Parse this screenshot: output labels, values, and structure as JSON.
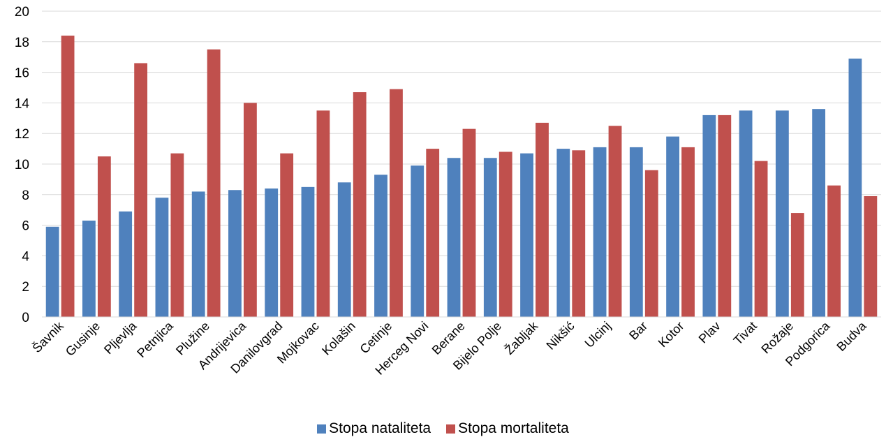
{
  "chart_data": {
    "type": "bar",
    "categories": [
      "Šavnik",
      "Gusinje",
      "Pljevlja",
      "Petnjica",
      "Plužine",
      "Andrijevica",
      "Danilovgrad",
      "Mojkovac",
      "Kolašin",
      "Cetinje",
      "Herceg Novi",
      "Berane",
      "Bijelo Polje",
      "Žabljak",
      "Nikšić",
      "Ulcinj",
      "Bar",
      "Kotor",
      "Plav",
      "Tivat",
      "Rožaje",
      "Podgorica",
      "Budva"
    ],
    "series": [
      {
        "name": "Stopa nataliteta",
        "color": "#4F81BD",
        "values": [
          5.9,
          6.3,
          6.9,
          7.8,
          8.2,
          8.3,
          8.4,
          8.5,
          8.8,
          9.3,
          9.9,
          10.4,
          10.4,
          10.7,
          11.0,
          11.1,
          11.1,
          11.8,
          13.2,
          13.5,
          13.5,
          13.6,
          16.9
        ]
      },
      {
        "name": "Stopa mortaliteta",
        "color": "#C0504D",
        "values": [
          18.4,
          10.5,
          16.6,
          10.7,
          17.5,
          14.0,
          10.7,
          13.5,
          14.7,
          14.9,
          11.0,
          12.3,
          10.8,
          12.7,
          10.9,
          12.5,
          9.6,
          11.1,
          13.2,
          10.2,
          6.8,
          8.6,
          7.9
        ]
      }
    ],
    "yticks": [
      "0",
      "2",
      "4",
      "6",
      "8",
      "10",
      "12",
      "14",
      "16",
      "18",
      "20"
    ],
    "ylim": [
      0,
      20
    ],
    "grid": true,
    "legend_position": "bottom"
  }
}
